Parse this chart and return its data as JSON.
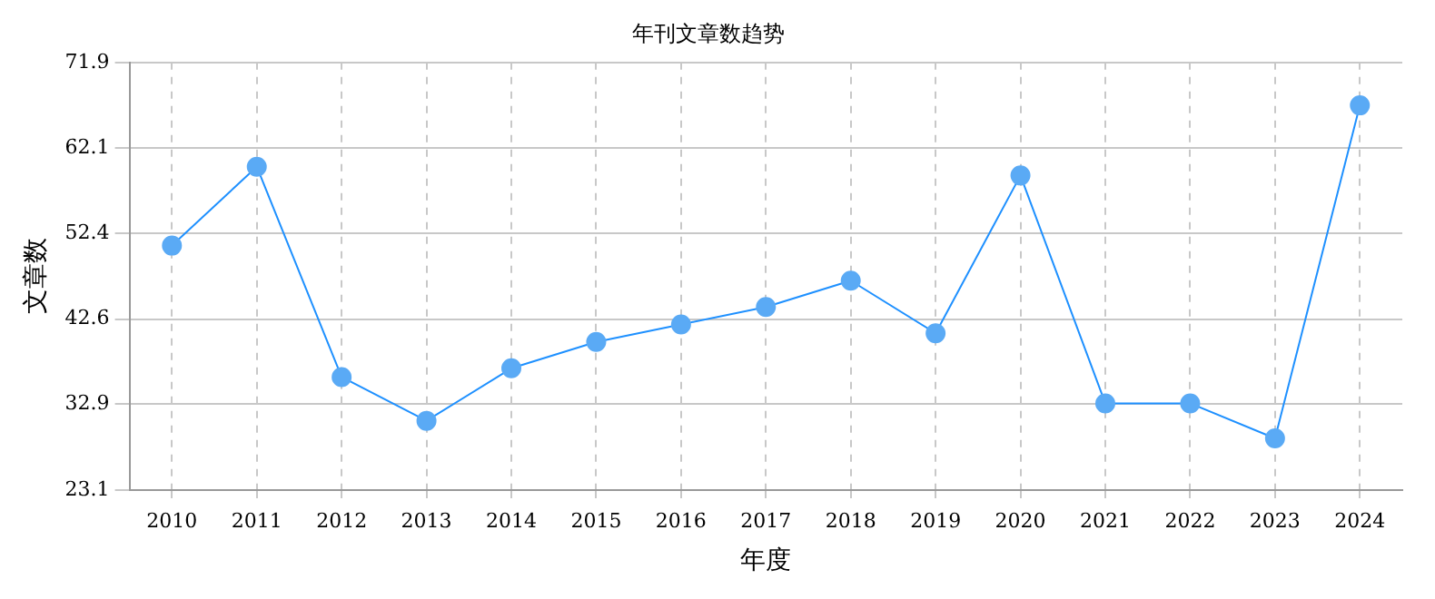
{
  "chart_data": {
    "type": "line",
    "title": "年刊文章数趋势",
    "xlabel": "年度",
    "ylabel": "文章数",
    "categories": [
      "2010",
      "2011",
      "2012",
      "2013",
      "2014",
      "2015",
      "2016",
      "2017",
      "2018",
      "2019",
      "2020",
      "2021",
      "2022",
      "2023",
      "2024"
    ],
    "series": [
      {
        "color": "#1e90ff",
        "values": [
          51,
          60,
          36,
          31,
          37,
          40,
          42,
          44,
          47,
          41,
          59,
          33,
          33,
          29,
          67
        ]
      }
    ],
    "ylim": [
      23.1,
      71.9
    ],
    "yticks": [
      23.1,
      32.9,
      42.6,
      52.4,
      62.1,
      71.9
    ],
    "grid": true,
    "marker": "circle",
    "line_style": "solid"
  }
}
